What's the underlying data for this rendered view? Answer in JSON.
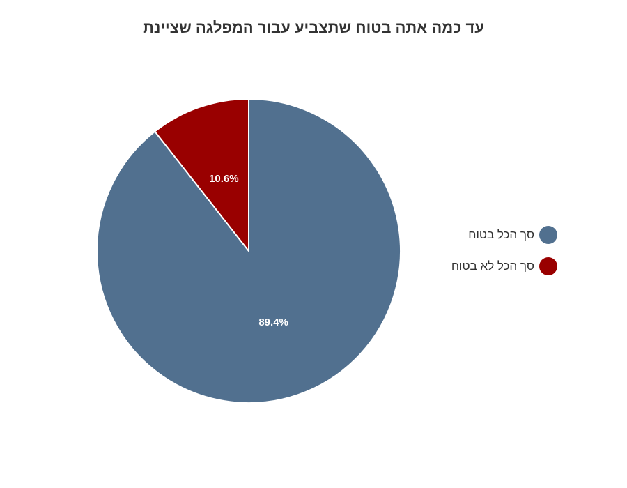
{
  "chart_data": {
    "type": "pie",
    "title": "עד כמה אתה בטוח שתצביע עבור המפלגה שציינת",
    "series": [
      {
        "name": "סך הכל בטוח",
        "value": 89.4,
        "label": "89.4%",
        "color": "#51708f"
      },
      {
        "name": "סך הכל לא בטוח",
        "value": 10.6,
        "label": "10.6%",
        "color": "#990000"
      }
    ],
    "legend_position": "right"
  }
}
